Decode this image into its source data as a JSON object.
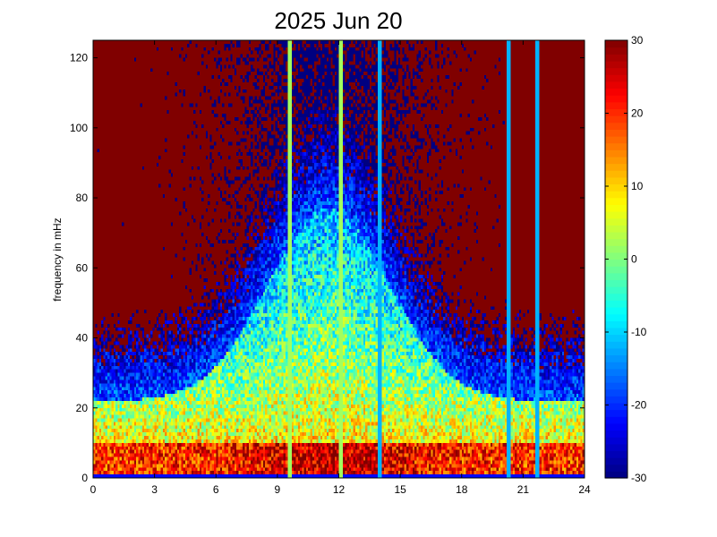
{
  "chart_data": {
    "type": "heatmap",
    "title": "2025 Jun 20",
    "xlabel": "",
    "ylabel": "frequency in mHz",
    "xlim": [
      0,
      24
    ],
    "ylim": [
      0,
      125
    ],
    "x_ticks": [
      "0",
      "3",
      "6",
      "9",
      "12",
      "15",
      "18",
      "21",
      "24"
    ],
    "x_tick_values": [
      0,
      3,
      6,
      9,
      12,
      15,
      18,
      21,
      24
    ],
    "y_ticks": [
      "0",
      "20",
      "40",
      "60",
      "80",
      "100",
      "120"
    ],
    "y_tick_values": [
      0,
      20,
      40,
      60,
      80,
      100,
      120
    ],
    "colorbar": {
      "range": [
        -30,
        30
      ],
      "ticks": [
        "-30",
        "-20",
        "-10",
        "0",
        "10",
        "20",
        "30"
      ],
      "tick_values": [
        -30,
        -20,
        -10,
        0,
        10,
        20,
        30
      ],
      "colormap": "jet"
    },
    "x_bin_hours": 0.1,
    "y_bin_mhz": 1,
    "grid": false,
    "features": {
      "vertical_streaks_hours": [
        9.6,
        12.1,
        14.0,
        20.3,
        21.7
      ],
      "low_frequency_band_mhz": [
        0,
        10
      ],
      "saturated_region": "upper frequencies outside midday"
    }
  },
  "colors": {
    "background": "#ffffff",
    "axes": "#000000",
    "saturation_high": "#800000",
    "saturation_low": "#00008f"
  }
}
